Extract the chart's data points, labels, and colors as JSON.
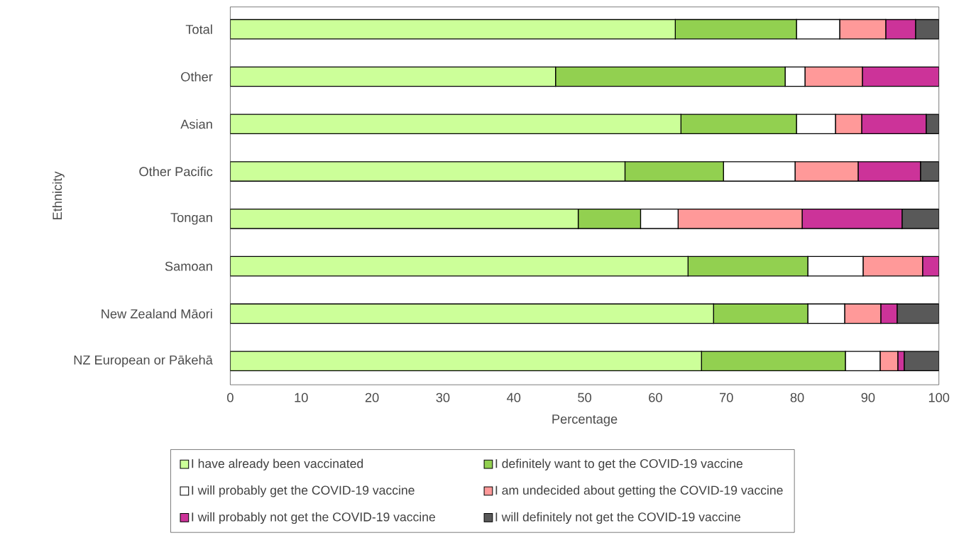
{
  "chart_data": {
    "type": "bar",
    "orientation": "horizontal",
    "stacked": true,
    "xlabel": "Percentage",
    "ylabel": "Ethnicity",
    "categories": [
      "Total",
      "Other",
      "Asian",
      "Other Pacific",
      "Tongan",
      "Samoan",
      "New Zealand Māori",
      "NZ European or Pākehā"
    ],
    "xlim": [
      0,
      100
    ],
    "xticks": [
      0,
      10,
      20,
      30,
      40,
      50,
      60,
      70,
      80,
      90,
      100
    ],
    "grid": false,
    "legend": "bottom",
    "series": [
      {
        "name": "I have already been vaccinated",
        "color": "#ccff99",
        "values": [
          62.8,
          45.9,
          63.6,
          55.7,
          49.1,
          64.6,
          68.2,
          66.5
        ]
      },
      {
        "name": "I definitely want to get the COVID-19 vaccine",
        "color": "#92d050",
        "values": [
          17.1,
          32.4,
          16.3,
          13.9,
          8.8,
          16.9,
          13.3,
          20.3
        ]
      },
      {
        "name": "I will probably get the COVID-19 vaccine",
        "color": "#ffffff",
        "values": [
          6.1,
          2.8,
          5.5,
          10.1,
          5.3,
          7.8,
          5.2,
          4.9
        ]
      },
      {
        "name": "I am undecided about getting the COVID-19 vaccine",
        "color": "#ff9999",
        "values": [
          6.5,
          8.1,
          3.7,
          8.9,
          17.5,
          8.4,
          5.1,
          2.5
        ]
      },
      {
        "name": "I will probably not get the COVID-19 vaccine",
        "color": "#cc3399",
        "values": [
          4.2,
          10.8,
          9.1,
          8.8,
          14.1,
          2.3,
          2.3,
          0.9
        ]
      },
      {
        "name": "I will definitely not get the COVID-19 vaccine",
        "color": "#595959",
        "values": [
          3.3,
          0,
          1.8,
          2.6,
          5.2,
          0,
          5.9,
          4.9
        ]
      }
    ]
  }
}
